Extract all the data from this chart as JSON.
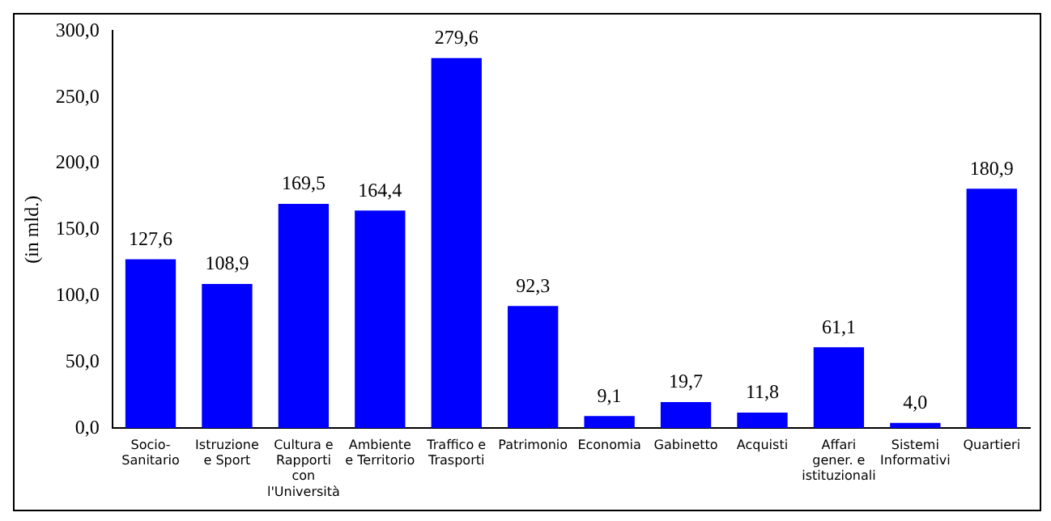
{
  "chart_data": {
    "type": "bar",
    "ylabel": "(in mld.)",
    "categories": [
      "Socio-Sanitario",
      "Istruzione e Sport",
      "Cultura e Rapporti con l'Università",
      "Ambiente e Territorio",
      "Traffico e Trasporti",
      "Patrimonio",
      "Economia",
      "Gabinetto",
      "Acquisti",
      "Affari gener. e istituzionali",
      "Sistemi Informativi",
      "Quartieri"
    ],
    "values": [
      127.6,
      108.9,
      169.5,
      164.4,
      279.6,
      92.3,
      9.1,
      19.7,
      11.8,
      61.1,
      4.0,
      180.9
    ],
    "value_labels": [
      "127,6",
      "108,9",
      "169,5",
      "164,4",
      "279,6",
      "92,3",
      "9,1",
      "19,7",
      "11,8",
      "61,1",
      "4,0",
      "180,9"
    ],
    "color": "#0000ff",
    "ylim": [
      0,
      300
    ],
    "yticks": [
      {
        "value": 0,
        "label": "0,0"
      },
      {
        "value": 50,
        "label": "50,0"
      },
      {
        "value": 100,
        "label": "100,0"
      },
      {
        "value": 150,
        "label": "150,0"
      },
      {
        "value": 200,
        "label": "200,0"
      },
      {
        "value": 250,
        "label": "250,0"
      },
      {
        "value": 300,
        "label": "300,0"
      }
    ],
    "grid": false,
    "legend": false
  }
}
